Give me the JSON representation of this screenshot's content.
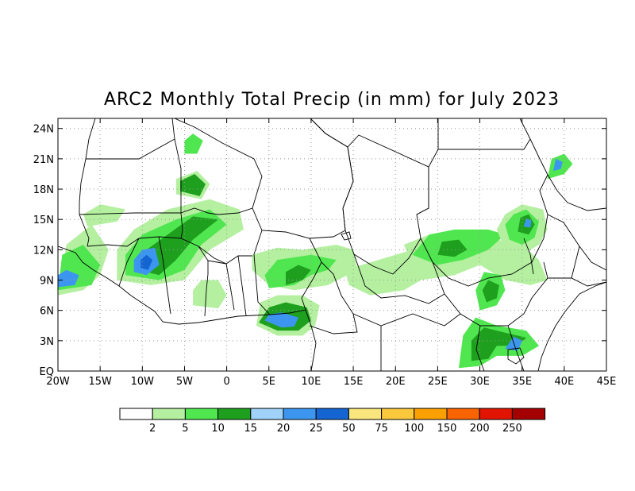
{
  "title": "ARC2 Monthly Total Precip (in mm) for July 2023",
  "map": {
    "lon_range": [
      -20,
      45
    ],
    "lat_range": [
      0,
      25
    ],
    "x_ticks": [
      {
        "value": -20,
        "label": "20W"
      },
      {
        "value": -15,
        "label": "15W"
      },
      {
        "value": -10,
        "label": "10W"
      },
      {
        "value": -5,
        "label": "5W"
      },
      {
        "value": 0,
        "label": "0"
      },
      {
        "value": 5,
        "label": "5E"
      },
      {
        "value": 10,
        "label": "10E"
      },
      {
        "value": 15,
        "label": "15E"
      },
      {
        "value": 20,
        "label": "20E"
      },
      {
        "value": 25,
        "label": "25E"
      },
      {
        "value": 30,
        "label": "30E"
      },
      {
        "value": 35,
        "label": "35E"
      },
      {
        "value": 40,
        "label": "40E"
      },
      {
        "value": 45,
        "label": "45E"
      }
    ],
    "y_ticks": [
      {
        "value": 0,
        "label": "EQ"
      },
      {
        "value": 3,
        "label": "3N"
      },
      {
        "value": 6,
        "label": "6N"
      },
      {
        "value": 9,
        "label": "9N"
      },
      {
        "value": 12,
        "label": "12N"
      },
      {
        "value": 15,
        "label": "15N"
      },
      {
        "value": 18,
        "label": "18N"
      },
      {
        "value": 21,
        "label": "21N"
      },
      {
        "value": 24,
        "label": "24N"
      }
    ],
    "grid": true
  },
  "legend": {
    "colors": [
      "#ffffff",
      "#b4f0a0",
      "#50e650",
      "#1ea01e",
      "#a0d2fa",
      "#3c96f0",
      "#1464d2",
      "#fae67d",
      "#fac83c",
      "#faa000",
      "#fa6400",
      "#e11400",
      "#a50000"
    ],
    "labels": [
      "2",
      "5",
      "10",
      "15",
      "20",
      "25",
      "50",
      "75",
      "100",
      "150",
      "200",
      "250"
    ]
  },
  "chart_data": {
    "type": "heatmap",
    "title": "ARC2 Monthly Total Precip (in mm) for July 2023",
    "x_range": [
      -20,
      45
    ],
    "y_range": [
      0,
      25
    ],
    "levels": [
      2,
      5,
      10,
      15,
      20,
      25,
      50,
      75,
      100,
      150,
      200,
      250
    ],
    "regions": [
      {
        "level": 2,
        "polygon": [
          [
            -20,
            7.5
          ],
          [
            -17,
            8
          ],
          [
            -15,
            9.5
          ],
          [
            -14,
            12
          ],
          [
            -16,
            14.5
          ],
          [
            -19,
            12.5
          ]
        ]
      },
      {
        "level": 5,
        "polygon": [
          [
            -20,
            8
          ],
          [
            -16,
            8.5
          ],
          [
            -15,
            10.5
          ],
          [
            -17,
            12.5
          ],
          [
            -19.5,
            11.5
          ]
        ]
      },
      {
        "level": 20,
        "polygon": [
          [
            -20,
            8.3
          ],
          [
            -18,
            8.5
          ],
          [
            -17.5,
            9.5
          ],
          [
            -19,
            10
          ],
          [
            -20,
            9.5
          ]
        ]
      },
      {
        "level": 2,
        "polygon": [
          [
            -13,
            9
          ],
          [
            -9,
            8.5
          ],
          [
            -5,
            9
          ],
          [
            -2,
            12
          ],
          [
            2,
            14
          ],
          [
            1.5,
            16
          ],
          [
            -2,
            17
          ],
          [
            -7,
            16
          ],
          [
            -11,
            14
          ],
          [
            -13,
            12
          ]
        ]
      },
      {
        "level": 5,
        "polygon": [
          [
            -12,
            9.5
          ],
          [
            -8,
            9
          ],
          [
            -5,
            10
          ],
          [
            -3,
            12.5
          ],
          [
            0,
            14.5
          ],
          [
            -2,
            16
          ],
          [
            -6,
            15
          ],
          [
            -10,
            13.5
          ],
          [
            -12,
            11.5
          ]
        ]
      },
      {
        "level": 10,
        "polygon": [
          [
            -10.5,
            10
          ],
          [
            -8,
            9.5
          ],
          [
            -6,
            11
          ],
          [
            -4,
            13
          ],
          [
            -1,
            15
          ],
          [
            -4,
            15.3
          ],
          [
            -7,
            13.5
          ],
          [
            -9.5,
            12
          ]
        ]
      },
      {
        "level": 20,
        "polygon": [
          [
            -11,
            9.8
          ],
          [
            -9.5,
            9.5
          ],
          [
            -8,
            10.5
          ],
          [
            -8.5,
            12.2
          ],
          [
            -10,
            12
          ],
          [
            -11,
            11
          ]
        ]
      },
      {
        "level": 25,
        "polygon": [
          [
            -10.2,
            10.2
          ],
          [
            -9.3,
            10
          ],
          [
            -8.8,
            11
          ],
          [
            -9.5,
            11.5
          ],
          [
            -10.2,
            11
          ]
        ]
      },
      {
        "level": 2,
        "polygon": [
          [
            -16.5,
            14.3
          ],
          [
            -13,
            14.8
          ],
          [
            -12,
            16
          ],
          [
            -15,
            16.5
          ],
          [
            -17,
            15.5
          ]
        ]
      },
      {
        "level": 2,
        "polygon": [
          [
            -6,
            17.5
          ],
          [
            -3,
            17
          ],
          [
            -2,
            18.5
          ],
          [
            -3.5,
            19.8
          ],
          [
            -6,
            19
          ]
        ]
      },
      {
        "level": 10,
        "polygon": [
          [
            -5.5,
            17.8
          ],
          [
            -3.2,
            17.3
          ],
          [
            -2.5,
            18.5
          ],
          [
            -3.8,
            19.5
          ],
          [
            -5.5,
            18.8
          ]
        ]
      },
      {
        "level": 5,
        "polygon": [
          [
            -5,
            21.5
          ],
          [
            -3.5,
            21.5
          ],
          [
            -2.8,
            22.8
          ],
          [
            -4,
            23.5
          ],
          [
            -5,
            22.8
          ]
        ]
      },
      {
        "level": 2,
        "polygon": [
          [
            3,
            11.5
          ],
          [
            6,
            12.2
          ],
          [
            9,
            12
          ],
          [
            13,
            12.5
          ],
          [
            15,
            12
          ],
          [
            15.5,
            10
          ],
          [
            12,
            8.5
          ],
          [
            8,
            8
          ],
          [
            5,
            8.5
          ],
          [
            3,
            10
          ]
        ]
      },
      {
        "level": 5,
        "polygon": [
          [
            5,
            8.2
          ],
          [
            8,
            8.5
          ],
          [
            10,
            9.5
          ],
          [
            12,
            10
          ],
          [
            13,
            11
          ],
          [
            10,
            11.5
          ],
          [
            6,
            11
          ],
          [
            4.5,
            9.5
          ]
        ]
      },
      {
        "level": 10,
        "polygon": [
          [
            7,
            8.5
          ],
          [
            9,
            9
          ],
          [
            10,
            10
          ],
          [
            8.5,
            10.5
          ],
          [
            7,
            9.8
          ]
        ]
      },
      {
        "level": 2,
        "polygon": [
          [
            3.5,
            4.5
          ],
          [
            6,
            3.5
          ],
          [
            9,
            3.5
          ],
          [
            10.5,
            4.5
          ],
          [
            11,
            6.5
          ],
          [
            9,
            7.5
          ],
          [
            6,
            7.5
          ],
          [
            4,
            6.8
          ]
        ]
      },
      {
        "level": 10,
        "polygon": [
          [
            3.8,
            4.8
          ],
          [
            6,
            4
          ],
          [
            8.5,
            4
          ],
          [
            10,
            5
          ],
          [
            9.5,
            6.3
          ],
          [
            7,
            6.8
          ],
          [
            5,
            6.3
          ]
        ]
      },
      {
        "level": 20,
        "polygon": [
          [
            4.5,
            5
          ],
          [
            6.5,
            4.3
          ],
          [
            8,
            4.4
          ],
          [
            8.5,
            5.3
          ],
          [
            6.5,
            5.8
          ],
          [
            5,
            5.6
          ]
        ]
      },
      {
        "level": 2,
        "polygon": [
          [
            -4,
            6.5
          ],
          [
            -1,
            6.2
          ],
          [
            0,
            7.5
          ],
          [
            -1,
            9
          ],
          [
            -3,
            9
          ],
          [
            -4,
            8
          ]
        ]
      },
      {
        "level": 2,
        "polygon": [
          [
            14,
            10
          ],
          [
            18,
            11
          ],
          [
            22,
            12
          ],
          [
            24,
            12.5
          ],
          [
            24,
            9.5
          ],
          [
            21,
            8
          ],
          [
            17,
            7.5
          ],
          [
            14.5,
            8.5
          ]
        ]
      },
      {
        "level": 2,
        "polygon": [
          [
            23,
            9
          ],
          [
            27,
            9.5
          ],
          [
            30,
            10.5
          ],
          [
            33,
            9
          ],
          [
            36,
            8.5
          ],
          [
            38,
            9
          ],
          [
            37,
            11
          ],
          [
            35,
            12.5
          ],
          [
            32,
            13
          ],
          [
            28,
            13.5
          ],
          [
            24,
            13.5
          ],
          [
            21,
            12.5
          ],
          [
            22,
            10.5
          ]
        ]
      },
      {
        "level": 5,
        "polygon": [
          [
            22,
            11.5
          ],
          [
            25,
            10.5
          ],
          [
            28,
            11
          ],
          [
            31,
            12
          ],
          [
            33,
            13.5
          ],
          [
            31,
            14
          ],
          [
            27,
            14
          ],
          [
            24,
            13.5
          ]
        ]
      },
      {
        "level": 10,
        "polygon": [
          [
            25,
            11.5
          ],
          [
            27,
            11.3
          ],
          [
            28.5,
            12
          ],
          [
            27.5,
            13
          ],
          [
            25.5,
            12.8
          ]
        ]
      },
      {
        "level": 2,
        "polygon": [
          [
            33,
            12
          ],
          [
            35,
            11.5
          ],
          [
            37,
            12.5
          ],
          [
            38,
            14
          ],
          [
            37.5,
            16
          ],
          [
            35,
            16.5
          ],
          [
            33,
            15.5
          ],
          [
            32,
            14
          ]
        ]
      },
      {
        "level": 5,
        "polygon": [
          [
            33.5,
            13
          ],
          [
            35,
            12.5
          ],
          [
            36.5,
            13.2
          ],
          [
            37,
            14.8
          ],
          [
            35.5,
            16
          ],
          [
            34,
            15.5
          ],
          [
            33,
            14.5
          ]
        ]
      },
      {
        "level": 10,
        "polygon": [
          [
            34.5,
            13.8
          ],
          [
            35.8,
            13.5
          ],
          [
            36.5,
            14.5
          ],
          [
            35.8,
            15.5
          ],
          [
            34.8,
            15.2
          ]
        ]
      },
      {
        "level": 20,
        "polygon": [
          [
            35.2,
            14.3
          ],
          [
            36,
            14.2
          ],
          [
            36.1,
            14.9
          ],
          [
            35.5,
            15.1
          ]
        ]
      },
      {
        "level": 5,
        "polygon": [
          [
            30,
            6
          ],
          [
            32,
            6.5
          ],
          [
            33,
            8
          ],
          [
            32.5,
            9.5
          ],
          [
            30.5,
            9.8
          ],
          [
            29.5,
            8
          ]
        ]
      },
      {
        "level": 10,
        "polygon": [
          [
            30.8,
            6.8
          ],
          [
            32,
            7.2
          ],
          [
            32.3,
            8.5
          ],
          [
            31,
            9
          ],
          [
            30.3,
            8
          ]
        ]
      },
      {
        "level": 5,
        "polygon": [
          [
            27.5,
            0.3
          ],
          [
            30,
            0.5
          ],
          [
            32,
            1.5
          ],
          [
            35,
            1.5
          ],
          [
            37,
            2.5
          ],
          [
            35.5,
            4
          ],
          [
            32,
            4.5
          ],
          [
            29.5,
            5.3
          ],
          [
            28,
            3.5
          ]
        ]
      },
      {
        "level": 10,
        "polygon": [
          [
            29,
            1
          ],
          [
            31,
            1.2
          ],
          [
            32,
            2.5
          ],
          [
            34.5,
            2.5
          ],
          [
            35.5,
            3.3
          ],
          [
            33,
            3.8
          ],
          [
            30.5,
            4.3
          ],
          [
            29,
            3
          ]
        ]
      },
      {
        "level": 20,
        "polygon": [
          [
            33,
            2.2
          ],
          [
            34.5,
            2
          ],
          [
            35,
            3
          ],
          [
            34,
            3.4
          ]
        ]
      },
      {
        "level": 5,
        "polygon": [
          [
            38,
            19
          ],
          [
            40,
            19.5
          ],
          [
            41,
            20.5
          ],
          [
            40,
            21.5
          ],
          [
            38.5,
            21
          ]
        ]
      },
      {
        "level": 20,
        "polygon": [
          [
            38.7,
            19.8
          ],
          [
            39.6,
            20
          ],
          [
            39.8,
            20.7
          ],
          [
            39,
            21
          ]
        ]
      }
    ]
  }
}
